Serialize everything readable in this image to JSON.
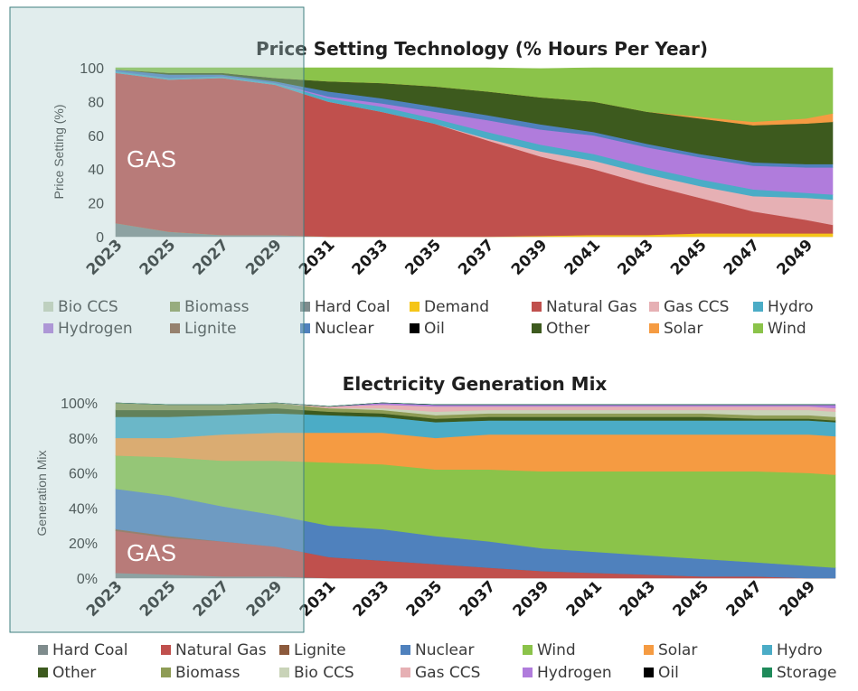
{
  "chart_data": [
    {
      "type": "area",
      "stacked": true,
      "title": "Price Setting Technology (% Hours Per Year)",
      "ylabel": "Price Setting (%)",
      "ylim": [
        0,
        100
      ],
      "yticks": [
        "0",
        "20",
        "40",
        "60",
        "80",
        "100"
      ],
      "xlim": [
        2023,
        2050
      ],
      "xticks": [
        "2023",
        "2025",
        "2027",
        "2029",
        "2031",
        "2033",
        "2035",
        "2037",
        "2039",
        "2041",
        "2043",
        "2045",
        "2047",
        "2049"
      ],
      "x": [
        2023,
        2025,
        2027,
        2029,
        2031,
        2033,
        2035,
        2037,
        2039,
        2041,
        2043,
        2045,
        2047,
        2049,
        2050
      ],
      "series": [
        {
          "name": "Hard Coal",
          "color": "#7f8c8d",
          "values": [
            8,
            3,
            1,
            1,
            0,
            0,
            0,
            0,
            0,
            0,
            0,
            0,
            0,
            0,
            0
          ]
        },
        {
          "name": "Demand",
          "color": "#f5c518",
          "values": [
            0,
            0,
            0,
            0,
            0,
            0,
            0,
            0,
            0.5,
            1,
            1,
            2,
            2,
            2,
            2
          ]
        },
        {
          "name": "Natural Gas",
          "color": "#c0504d",
          "values": [
            89,
            90,
            93,
            89,
            80,
            74,
            67,
            57,
            47,
            39,
            30,
            21,
            13,
            8,
            5
          ]
        },
        {
          "name": "Gas CCS",
          "color": "#e6b0b4",
          "values": [
            0,
            0,
            0,
            0,
            0,
            0,
            0,
            1,
            3,
            5,
            6,
            7,
            9,
            13,
            15
          ]
        },
        {
          "name": "Hydro",
          "color": "#4bacc6",
          "values": [
            1,
            1,
            1,
            1,
            2,
            3,
            3,
            4,
            4,
            4,
            4,
            4,
            4,
            3,
            3
          ]
        },
        {
          "name": "Hydrogen",
          "color": "#b07cdc",
          "values": [
            0,
            0,
            0,
            0,
            1,
            2,
            4,
            7,
            9,
            11,
            12,
            13,
            14,
            15,
            16
          ]
        },
        {
          "name": "Nuclear",
          "color": "#4f81bd",
          "values": [
            1,
            2,
            1,
            1,
            3,
            3,
            3,
            3,
            3,
            2,
            2,
            2,
            2,
            2,
            2
          ]
        },
        {
          "name": "Other",
          "color": "#3d5a1e",
          "values": [
            0,
            1,
            1,
            2,
            6,
            9,
            12,
            14,
            16,
            18,
            19,
            21,
            22,
            24,
            25
          ]
        },
        {
          "name": "Solar",
          "color": "#f59b42",
          "values": [
            0,
            0,
            0,
            0,
            0,
            0,
            0,
            0,
            0,
            0,
            0,
            1,
            2,
            3,
            5
          ]
        },
        {
          "name": "Wind",
          "color": "#8bc34a",
          "values": [
            1,
            3,
            3,
            6,
            8,
            9,
            11,
            14,
            17,
            20,
            26,
            29,
            32,
            30,
            27
          ]
        }
      ],
      "annotation": "GAS",
      "legend": [
        {
          "label": "Bio CCS",
          "color": "#c9d3b8"
        },
        {
          "label": "Biomass",
          "color": "#8e9c55"
        },
        {
          "label": "Hard Coal",
          "color": "#7f8c8d"
        },
        {
          "label": "Demand",
          "color": "#f5c518"
        },
        {
          "label": "Natural Gas",
          "color": "#c0504d"
        },
        {
          "label": "Gas CCS",
          "color": "#e6b0b4"
        },
        {
          "label": "Hydro",
          "color": "#4bacc6"
        },
        {
          "label": "Hydrogen",
          "color": "#b07cdc"
        },
        {
          "label": "Lignite",
          "color": "#8c5a3c"
        },
        {
          "label": "Nuclear",
          "color": "#4f81bd"
        },
        {
          "label": "Oil",
          "color": "#000000"
        },
        {
          "label": "Other",
          "color": "#3d5a1e"
        },
        {
          "label": "Solar",
          "color": "#f59b42"
        },
        {
          "label": "Wind",
          "color": "#8bc34a"
        }
      ]
    },
    {
      "type": "area",
      "stacked": true,
      "title": "Electricity Generation Mix",
      "ylabel": "Generation Mix",
      "ylim": [
        0,
        100
      ],
      "yticks": [
        "0%",
        "20%",
        "40%",
        "60%",
        "80%",
        "100%"
      ],
      "xlim": [
        2023,
        2050
      ],
      "xticks": [
        "2023",
        "2025",
        "2027",
        "2029",
        "2031",
        "2033",
        "2035",
        "2037",
        "2039",
        "2041",
        "2043",
        "2045",
        "2047",
        "2049"
      ],
      "x": [
        2023,
        2025,
        2027,
        2029,
        2031,
        2033,
        2035,
        2037,
        2039,
        2041,
        2043,
        2045,
        2047,
        2049,
        2050
      ],
      "series": [
        {
          "name": "Hard Coal",
          "color": "#7f8c8d",
          "values": [
            3,
            2,
            1,
            1,
            0,
            0,
            0,
            0,
            0,
            0,
            0,
            0,
            0,
            0,
            0
          ]
        },
        {
          "name": "Natural Gas",
          "color": "#c0504d",
          "values": [
            24,
            21,
            20,
            17,
            12,
            10,
            8,
            6,
            4,
            3,
            2,
            1,
            1,
            0,
            0
          ]
        },
        {
          "name": "Lignite",
          "color": "#8c5a3c",
          "values": [
            1,
            1,
            0,
            0,
            0,
            0,
            0,
            0,
            0,
            0,
            0,
            0,
            0,
            0,
            0
          ]
        },
        {
          "name": "Nuclear",
          "color": "#4f81bd",
          "values": [
            23,
            23,
            20,
            18,
            18,
            18,
            16,
            15,
            13,
            12,
            11,
            10,
            8,
            7,
            6
          ]
        },
        {
          "name": "Wind",
          "color": "#8bc34a",
          "values": [
            19,
            22,
            26,
            31,
            36,
            37,
            38,
            41,
            44,
            46,
            48,
            50,
            52,
            53,
            53
          ]
        },
        {
          "name": "Solar",
          "color": "#f59b42",
          "values": [
            10,
            11,
            15,
            16,
            17,
            18,
            18,
            20,
            21,
            21,
            21,
            21,
            21,
            22,
            22
          ]
        },
        {
          "name": "Hydro",
          "color": "#4bacc6",
          "values": [
            12,
            12,
            11,
            11,
            10,
            9,
            9,
            8,
            8,
            8,
            8,
            8,
            8,
            8,
            8
          ]
        },
        {
          "name": "Other",
          "color": "#3d5a1e",
          "values": [
            4,
            4,
            3,
            3,
            2,
            2,
            2,
            2,
            2,
            2,
            2,
            2,
            1,
            1,
            1
          ]
        },
        {
          "name": "Biomass",
          "color": "#8e9c55",
          "values": [
            4,
            3,
            3,
            3,
            2,
            2,
            2,
            2,
            2,
            2,
            2,
            2,
            2,
            2,
            2
          ]
        },
        {
          "name": "Bio CCS",
          "color": "#c9d3b8",
          "values": [
            0,
            0,
            0,
            0,
            0,
            1,
            2,
            2,
            2,
            2,
            2,
            2,
            3,
            3,
            3
          ]
        },
        {
          "name": "Gas CCS",
          "color": "#e6b0b4",
          "values": [
            0,
            0,
            0,
            0,
            1,
            2,
            3,
            2,
            2,
            2,
            2,
            2,
            2,
            2,
            2
          ]
        },
        {
          "name": "Hydrogen",
          "color": "#b07cdc",
          "values": [
            0,
            0,
            0,
            0,
            0,
            1,
            1,
            1,
            1,
            1,
            1,
            1,
            1,
            1,
            2
          ]
        },
        {
          "name": "Oil",
          "color": "#000000",
          "values": [
            0,
            0,
            0,
            0,
            0,
            0,
            0,
            0,
            0,
            0,
            0,
            0,
            0,
            0,
            0
          ]
        },
        {
          "name": "Storage",
          "color": "#1e8a5a",
          "values": [
            0,
            0,
            0,
            0,
            0,
            0,
            0,
            0,
            0,
            0,
            0,
            0,
            0,
            0,
            0
          ]
        }
      ],
      "annotation": "GAS",
      "legend": [
        {
          "label": "Hard Coal",
          "color": "#7f8c8d"
        },
        {
          "label": "Natural Gas",
          "color": "#c0504d"
        },
        {
          "label": "Lignite",
          "color": "#8c5a3c"
        },
        {
          "label": "Nuclear",
          "color": "#4f81bd"
        },
        {
          "label": "Wind",
          "color": "#8bc34a"
        },
        {
          "label": "Solar",
          "color": "#f59b42"
        },
        {
          "label": "Hydro",
          "color": "#4bacc6"
        },
        {
          "label": "Other",
          "color": "#3d5a1e"
        },
        {
          "label": "Biomass",
          "color": "#8e9c55"
        },
        {
          "label": "Bio CCS",
          "color": "#c9d3b8"
        },
        {
          "label": "Gas CCS",
          "color": "#e6b0b4"
        },
        {
          "label": "Hydrogen",
          "color": "#b07cdc"
        },
        {
          "label": "Oil",
          "color": "#000000"
        },
        {
          "label": "Storage",
          "color": "#1e8a5a"
        }
      ]
    }
  ],
  "highlight": {
    "range": [
      2023,
      2030
    ],
    "color": "#a9cccc",
    "border": "#3f7f7f"
  }
}
